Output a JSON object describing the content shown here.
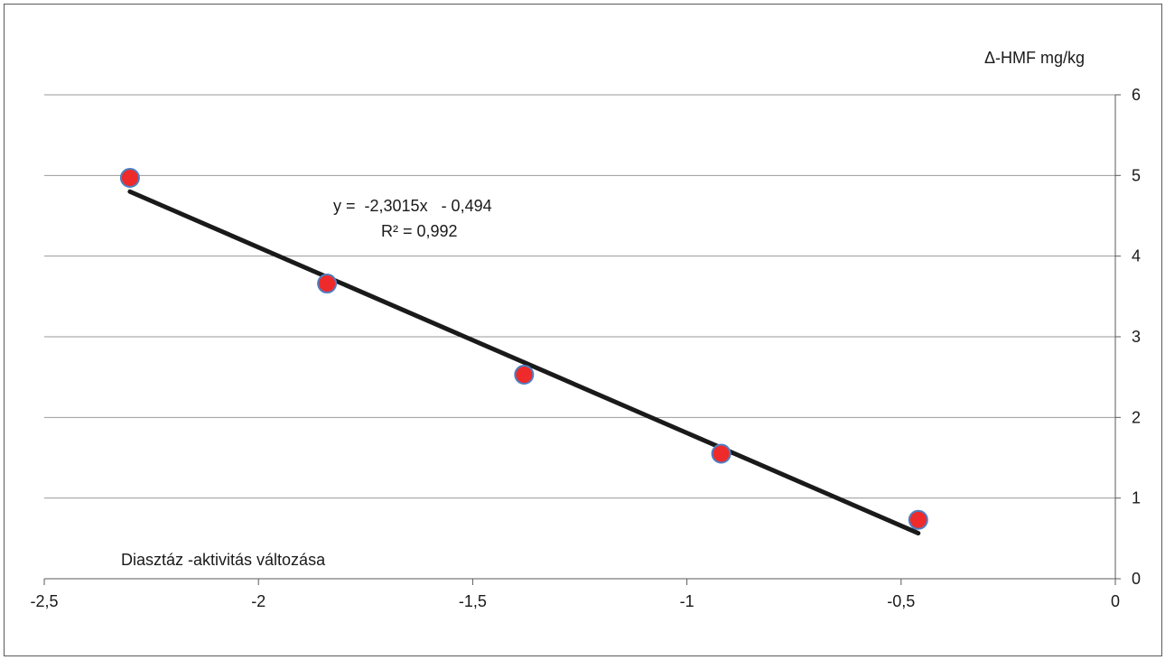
{
  "chart_data": {
    "type": "scatter",
    "title": "",
    "xlabel": "Diasztáz -aktivitás változása",
    "ylabel": "Δ-HMF mg/kg",
    "xlim": [
      -2.5,
      0
    ],
    "ylim": [
      0,
      6
    ],
    "x_ticks": [
      "-2,5",
      "-2",
      "-1,5",
      "-1",
      "-0,5",
      "0"
    ],
    "y_ticks": [
      "0",
      "1",
      "2",
      "3",
      "4",
      "5",
      "6"
    ],
    "y_axis_position": "right",
    "grid": "horizontal",
    "points": [
      {
        "x": -2.3,
        "y": 4.97
      },
      {
        "x": -1.84,
        "y": 3.66
      },
      {
        "x": -1.38,
        "y": 2.53
      },
      {
        "x": -0.92,
        "y": 1.55
      },
      {
        "x": -0.46,
        "y": 0.73
      }
    ],
    "trendline": {
      "slope": -2.3015,
      "intercept": -0.494,
      "x_from": -2.3,
      "x_to": -0.46
    },
    "equation_text": "y =  -2,3015x   - 0,494",
    "r2_text": "R² = 0,992",
    "colors": {
      "marker_fill": "#ee2a2a",
      "marker_stroke": "#4f7ec2",
      "trendline": "#1a1a1a",
      "grid": "#9a9a9a"
    }
  }
}
